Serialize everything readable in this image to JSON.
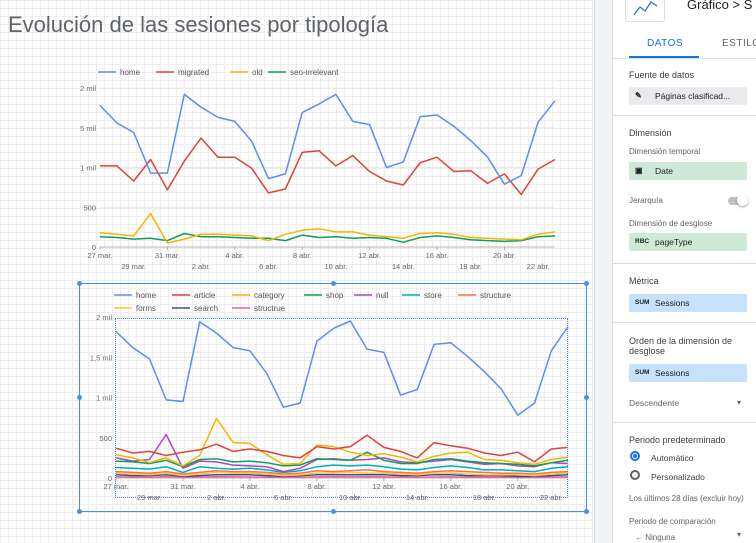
{
  "page": {
    "title": "Evolución de las sesiones por tipología"
  },
  "panel": {
    "header_title": "Gráfico > S",
    "tabs": [
      {
        "label": "DATOS"
      },
      {
        "label": "ESTILO"
      }
    ],
    "data_source": {
      "label": "Fuente de datos",
      "value": "Páginas clasificad..."
    },
    "dimension": {
      "label": "Dimensión",
      "time_dimension_label": "Dimensión temporal",
      "time_dimension_value": "Date",
      "hierarchy_label": "Jerarquía",
      "breakdown_label": "Dimensión de desglose",
      "breakdown_value": "pageType"
    },
    "metric": {
      "label": "Métrica",
      "value": "Sessions",
      "agg": "SUM"
    },
    "sort": {
      "label": "Orden de la dimensión de desglose",
      "value": "Sessions",
      "agg": "SUM",
      "direction": "Descendente"
    },
    "date_range": {
      "label": "Periodo predeterminado",
      "option_auto": "Automático",
      "option_custom": "Personalizado",
      "summary": "Los últimos 28 días (excluir hoy)",
      "comparison_label": "Periodo de comparación",
      "comparison_value": "Ninguna"
    }
  },
  "colors": {
    "blue": "#5b8def",
    "red": "#db4437",
    "yellow": "#f4b400",
    "green": "#0f9d58",
    "purple": "#ab47bc",
    "teal": "#00acc1",
    "orange": "#ff7043",
    "accent": "#1a73e8",
    "selection": "#4a90e2"
  },
  "chart_data": [
    {
      "type": "line",
      "x_tick_labels_top": [
        "27 mar.",
        "31 mar.",
        "4 abr.",
        "8 abr.",
        "12 abr.",
        "16 abr.",
        "20 abr."
      ],
      "x_tick_labels_bottom": [
        "29 mar.",
        "2 abr.",
        "6 abr.",
        "10 abr.",
        "14 abr.",
        "18 abr.",
        "22 abr."
      ],
      "y_tick_labels": [
        "0",
        "500",
        "1 mil",
        "1,5 mil",
        "2 mil"
      ],
      "ylim": [
        0,
        2000
      ],
      "legend_position": "top",
      "series": [
        {
          "name": "home",
          "color": "#5b8def",
          "values": [
            1780,
            1560,
            1440,
            930,
            930,
            1920,
            1760,
            1630,
            1580,
            1330,
            860,
            920,
            1690,
            1800,
            1920,
            1580,
            1540,
            1000,
            1070,
            1640,
            1660,
            1520,
            1340,
            1130,
            790,
            900,
            1570,
            1840
          ]
        },
        {
          "name": "migrated",
          "color": "#db4437",
          "values": [
            1020,
            1020,
            830,
            1100,
            720,
            1080,
            1370,
            1130,
            1130,
            990,
            680,
            730,
            1190,
            1210,
            1020,
            1150,
            950,
            830,
            780,
            1060,
            1130,
            950,
            960,
            800,
            920,
            660,
            980,
            1100
          ]
        },
        {
          "name": "old",
          "color": "#f4b400",
          "values": [
            180,
            160,
            140,
            420,
            50,
            100,
            160,
            160,
            150,
            140,
            80,
            160,
            210,
            230,
            190,
            190,
            150,
            130,
            110,
            170,
            180,
            160,
            120,
            110,
            100,
            90,
            160,
            190
          ]
        },
        {
          "name": "seo-irrelevant",
          "color": "#0f9d58",
          "values": [
            130,
            120,
            100,
            110,
            80,
            170,
            130,
            130,
            120,
            110,
            110,
            80,
            150,
            120,
            130,
            110,
            120,
            110,
            60,
            120,
            140,
            120,
            90,
            80,
            70,
            80,
            130,
            140
          ]
        }
      ]
    },
    {
      "type": "line",
      "x_tick_labels_top": [
        "27 mar.",
        "31 mar.",
        "4 abr.",
        "8 abr.",
        "12 abr.",
        "16 abr.",
        "20 abr."
      ],
      "x_tick_labels_bottom": [
        "29 mar.",
        "2 abr.",
        "6 abr.",
        "10 abr.",
        "14 abr.",
        "18 abr.",
        "22 abr."
      ],
      "y_tick_labels": [
        "0",
        "500",
        "1 mil",
        "1,5 mil",
        "2 mil"
      ],
      "ylim": [
        0,
        2000
      ],
      "legend_position": "top",
      "series": [
        {
          "name": "home",
          "color": "#5b8def",
          "values": [
            1820,
            1620,
            1480,
            970,
            950,
            1940,
            1800,
            1620,
            1580,
            1300,
            880,
            930,
            1700,
            1860,
            1950,
            1600,
            1560,
            1030,
            1100,
            1660,
            1680,
            1510,
            1320,
            1110,
            780,
            930,
            1580,
            1880
          ]
        },
        {
          "name": "article",
          "color": "#db4437",
          "values": [
            370,
            310,
            330,
            280,
            320,
            350,
            420,
            330,
            360,
            330,
            280,
            250,
            390,
            360,
            390,
            530,
            380,
            330,
            250,
            440,
            400,
            370,
            310,
            280,
            320,
            200,
            360,
            380
          ]
        },
        {
          "name": "category",
          "color": "#f4b400",
          "values": [
            290,
            250,
            190,
            250,
            150,
            280,
            740,
            440,
            430,
            290,
            170,
            180,
            410,
            390,
            320,
            280,
            300,
            260,
            200,
            270,
            310,
            320,
            230,
            220,
            190,
            170,
            230,
            260
          ]
        },
        {
          "name": "shop",
          "color": "#0f9d58",
          "values": [
            210,
            200,
            180,
            220,
            140,
            230,
            240,
            200,
            210,
            190,
            150,
            160,
            240,
            230,
            220,
            320,
            220,
            180,
            180,
            230,
            240,
            210,
            190,
            180,
            170,
            150,
            190,
            220
          ]
        },
        {
          "name": "null",
          "color": "#ab47bc",
          "values": [
            250,
            210,
            230,
            540,
            120,
            210,
            200,
            160,
            150,
            140,
            80,
            120,
            230,
            240,
            220,
            230,
            250,
            200,
            190,
            210,
            230,
            200,
            170,
            180,
            150,
            140,
            190,
            180
          ]
        },
        {
          "name": "store",
          "color": "#00acc1",
          "values": [
            130,
            120,
            110,
            140,
            70,
            140,
            120,
            110,
            120,
            100,
            70,
            90,
            140,
            160,
            150,
            160,
            140,
            110,
            100,
            130,
            150,
            130,
            100,
            100,
            90,
            80,
            120,
            140
          ]
        },
        {
          "name": "structure",
          "color": "#ff7043",
          "values": [
            80,
            70,
            60,
            80,
            50,
            70,
            90,
            80,
            80,
            70,
            50,
            60,
            90,
            80,
            90,
            100,
            80,
            70,
            60,
            80,
            90,
            80,
            70,
            60,
            60,
            50,
            70,
            80
          ]
        },
        {
          "name": "forms",
          "color": "#ffca28",
          "values": [
            60,
            50,
            40,
            60,
            30,
            50,
            70,
            60,
            60,
            50,
            30,
            40,
            60,
            60,
            70,
            60,
            60,
            50,
            40,
            60,
            60,
            50,
            40,
            40,
            40,
            30,
            50,
            60
          ]
        },
        {
          "name": "search",
          "color": "#3949ab",
          "values": [
            40,
            30,
            30,
            40,
            20,
            30,
            40,
            40,
            40,
            30,
            20,
            30,
            40,
            40,
            40,
            40,
            40,
            30,
            30,
            40,
            40,
            30,
            30,
            30,
            20,
            20,
            30,
            40
          ]
        },
        {
          "name": "structrue",
          "color": "#f06292",
          "values": [
            15,
            12,
            10,
            18,
            8,
            12,
            15,
            14,
            12,
            10,
            8,
            10,
            14,
            15,
            14,
            16,
            14,
            12,
            10,
            13,
            14,
            12,
            10,
            10,
            9,
            8,
            12,
            14
          ]
        }
      ]
    }
  ]
}
